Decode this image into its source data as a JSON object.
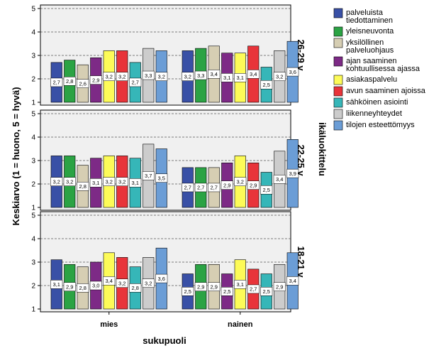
{
  "chart_data": {
    "type": "bar",
    "ylabel": "Keskiarvo (1 = huono, 5 = hyvä)",
    "xlabel": "sukupuoli",
    "panel_axis_label": "ikäluokittelu",
    "categories": [
      "mies",
      "nainen"
    ],
    "ylim": [
      1,
      5
    ],
    "yticks": [
      "1",
      "2",
      "3",
      "4",
      "5"
    ],
    "grid": true,
    "legend_position": "right",
    "series": [
      {
        "name": "palveluista tiedottaminen",
        "lines": [
          "palveluista",
          "tiedottaminen"
        ],
        "color": "#3950a6"
      },
      {
        "name": "yleisneuvonta",
        "lines": [
          "yleisneuvonta"
        ],
        "color": "#2ba344"
      },
      {
        "name": "yksilöllinen palveluohjaus",
        "lines": [
          "yksilöllinen",
          "palveluohjaus"
        ],
        "color": "#d6ceb3"
      },
      {
        "name": "ajan saaminen kohtuullisessa ajassa",
        "lines": [
          "ajan saaminen",
          "kohtuullisessa ajassa"
        ],
        "color": "#7d2a86"
      },
      {
        "name": "asiakaspalvelu",
        "lines": [
          "asiakaspalvelu"
        ],
        "color": "#fdfb58"
      },
      {
        "name": "avun saaminen ajoissa",
        "lines": [
          "avun saaminen ajoissa"
        ],
        "color": "#e8343a"
      },
      {
        "name": "sähköinen asiointi",
        "lines": [
          "sähköinen asiointi"
        ],
        "color": "#36b6b8"
      },
      {
        "name": "liikenneyhteydet",
        "lines": [
          "liikenneyhteydet"
        ],
        "color": "#cccccc"
      },
      {
        "name": "tilojen esteettömyys",
        "lines": [
          "tilojen esteettömyys"
        ],
        "color": "#6b9dd6"
      }
    ],
    "panels": [
      {
        "label": "26-29 v",
        "values": [
          [
            2.7,
            2.8,
            2.6,
            2.9,
            3.2,
            3.2,
            2.7,
            3.3,
            3.2
          ],
          [
            3.2,
            3.3,
            3.4,
            3.1,
            3.1,
            3.4,
            2.5,
            3.2,
            3.6
          ]
        ],
        "labels": [
          [
            "2,7",
            "2,8",
            "2,6",
            "2,9",
            "3,2",
            "3,2",
            "2,7",
            "3,3",
            "3,2"
          ],
          [
            "3,2",
            "3,3",
            "3,4",
            "3,1",
            "3,1",
            "3,4",
            "2,5",
            "3,2",
            "3,6"
          ]
        ]
      },
      {
        "label": "22-25 v",
        "values": [
          [
            3.2,
            3.2,
            2.8,
            3.1,
            3.2,
            3.2,
            3.1,
            3.7,
            3.5
          ],
          [
            2.7,
            2.7,
            2.7,
            2.9,
            3.2,
            2.9,
            2.5,
            3.4,
            3.9
          ]
        ],
        "labels": [
          [
            "3,2",
            "3,2",
            "2,8",
            "3,1",
            "3,2",
            "3,2",
            "3,1",
            "3,7",
            "3,5"
          ],
          [
            "2,7",
            "2,7",
            "2,7",
            "2,9",
            "3,2",
            "2,9",
            "2,5",
            "3,4",
            "3,9"
          ]
        ]
      },
      {
        "label": "18-21 v",
        "values": [
          [
            3.1,
            2.9,
            2.8,
            3.0,
            3.4,
            3.2,
            2.8,
            3.2,
            3.6
          ],
          [
            2.5,
            2.9,
            2.9,
            2.5,
            3.1,
            2.7,
            2.5,
            2.9,
            3.4
          ]
        ],
        "labels": [
          [
            "3,1",
            "2,9",
            "2,8",
            "3,0",
            "3,4",
            "3,2",
            "2,8",
            "3,2",
            "3,6"
          ],
          [
            "2,5",
            "2,9",
            "2,9",
            "2,5",
            "3,1",
            "2,7",
            "2,5",
            "2,9",
            "3,4"
          ]
        ]
      }
    ]
  }
}
